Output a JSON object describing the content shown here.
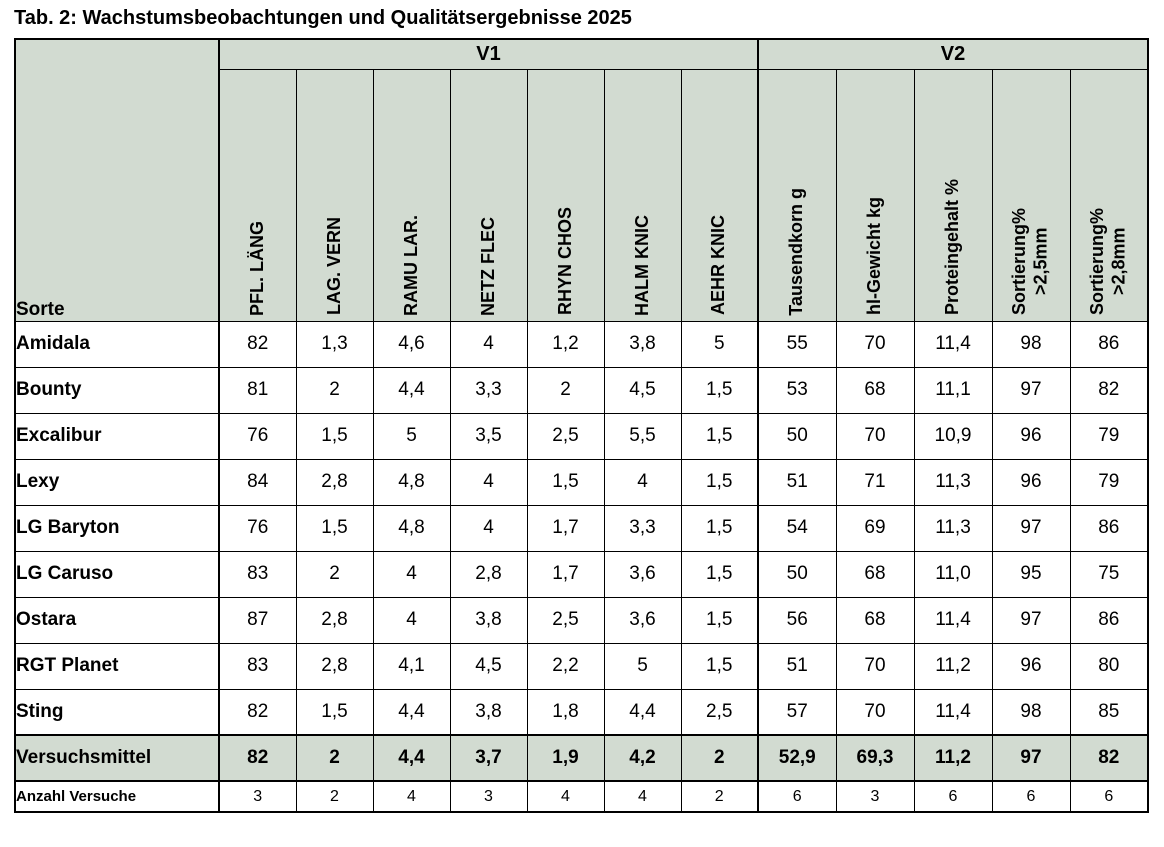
{
  "title": "Tab. 2: Wachstumsbeobachtungen und Qualitätsergebnisse 2025",
  "colors": {
    "header_bg": "#d2dbd1",
    "border": "#000000",
    "row_bg": "#ffffff"
  },
  "table": {
    "corner_label": "Sorte",
    "groups": [
      {
        "label": "V1",
        "span": 7
      },
      {
        "label": "V2",
        "span": 5
      }
    ],
    "columns": [
      "PFL. LÄNG",
      "LAG. VERN",
      "RAMU LAR.",
      "NETZ FLEC",
      "RHYN CHOS",
      "HALM KNIC",
      "AEHR KNIC",
      "Tausendkorn g",
      "hl-Gewicht kg",
      "Proteingehalt %",
      "Sortierung%\n>2,5mm",
      "Sortierung%\n>2,8mm"
    ],
    "rows": [
      {
        "name": "Amidala",
        "values": [
          "82",
          "1,3",
          "4,6",
          "4",
          "1,2",
          "3,8",
          "5",
          "55",
          "70",
          "11,4",
          "98",
          "86"
        ]
      },
      {
        "name": "Bounty",
        "values": [
          "81",
          "2",
          "4,4",
          "3,3",
          "2",
          "4,5",
          "1,5",
          "53",
          "68",
          "11,1",
          "97",
          "82"
        ]
      },
      {
        "name": "Excalibur",
        "values": [
          "76",
          "1,5",
          "5",
          "3,5",
          "2,5",
          "5,5",
          "1,5",
          "50",
          "70",
          "10,9",
          "96",
          "79"
        ]
      },
      {
        "name": "Lexy",
        "values": [
          "84",
          "2,8",
          "4,8",
          "4",
          "1,5",
          "4",
          "1,5",
          "51",
          "71",
          "11,3",
          "96",
          "79"
        ]
      },
      {
        "name": "LG Baryton",
        "values": [
          "76",
          "1,5",
          "4,8",
          "4",
          "1,7",
          "3,3",
          "1,5",
          "54",
          "69",
          "11,3",
          "97",
          "86"
        ]
      },
      {
        "name": "LG Caruso",
        "values": [
          "83",
          "2",
          "4",
          "2,8",
          "1,7",
          "3,6",
          "1,5",
          "50",
          "68",
          "11,0",
          "95",
          "75"
        ]
      },
      {
        "name": "Ostara",
        "values": [
          "87",
          "2,8",
          "4",
          "3,8",
          "2,5",
          "3,6",
          "1,5",
          "56",
          "68",
          "11,4",
          "97",
          "86"
        ]
      },
      {
        "name": "RGT Planet",
        "values": [
          "83",
          "2,8",
          "4,1",
          "4,5",
          "2,2",
          "5",
          "1,5",
          "51",
          "70",
          "11,2",
          "96",
          "80"
        ]
      },
      {
        "name": "Sting",
        "values": [
          "82",
          "1,5",
          "4,4",
          "3,8",
          "1,8",
          "4,4",
          "2,5",
          "57",
          "70",
          "11,4",
          "98",
          "85"
        ]
      }
    ],
    "summary_row": {
      "name": "Versuchsmittel",
      "values": [
        "82",
        "2",
        "4,4",
        "3,7",
        "1,9",
        "4,2",
        "2",
        "52,9",
        "69,3",
        "11,2",
        "97",
        "82"
      ]
    },
    "count_row": {
      "name": "Anzahl Versuche",
      "values": [
        "3",
        "2",
        "4",
        "3",
        "4",
        "4",
        "2",
        "6",
        "3",
        "6",
        "6",
        "6"
      ]
    }
  }
}
